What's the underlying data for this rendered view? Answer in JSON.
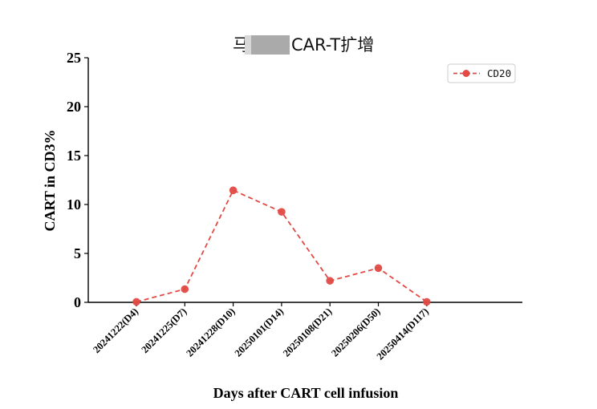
{
  "chart_data": {
    "type": "line",
    "title": "马 CAR-T扩增",
    "xlabel": "Days after CART cell infusion",
    "ylabel": "CART in CD3%",
    "categories": [
      "20241222(D4)",
      "20241225(D7)",
      "20241228(D10)",
      "20250101(D14)",
      "20250108(D21)",
      "20250206(D50)",
      "20250414(D117)"
    ],
    "series": [
      {
        "name": "CD20",
        "values": [
          0.05,
          1.35,
          11.45,
          9.25,
          2.2,
          3.5,
          0.05
        ],
        "color": "#e14a45",
        "line_style": "dashed",
        "marker": "circle"
      }
    ],
    "ylim": [
      0,
      25
    ],
    "yticks": [
      "0",
      "5",
      "10",
      "15",
      "20",
      "25"
    ],
    "ytick_values": [
      0,
      5,
      10,
      15,
      20,
      25
    ],
    "grid": false,
    "legend_position": "top-right",
    "title_redaction_color": "#aaaaaa"
  }
}
